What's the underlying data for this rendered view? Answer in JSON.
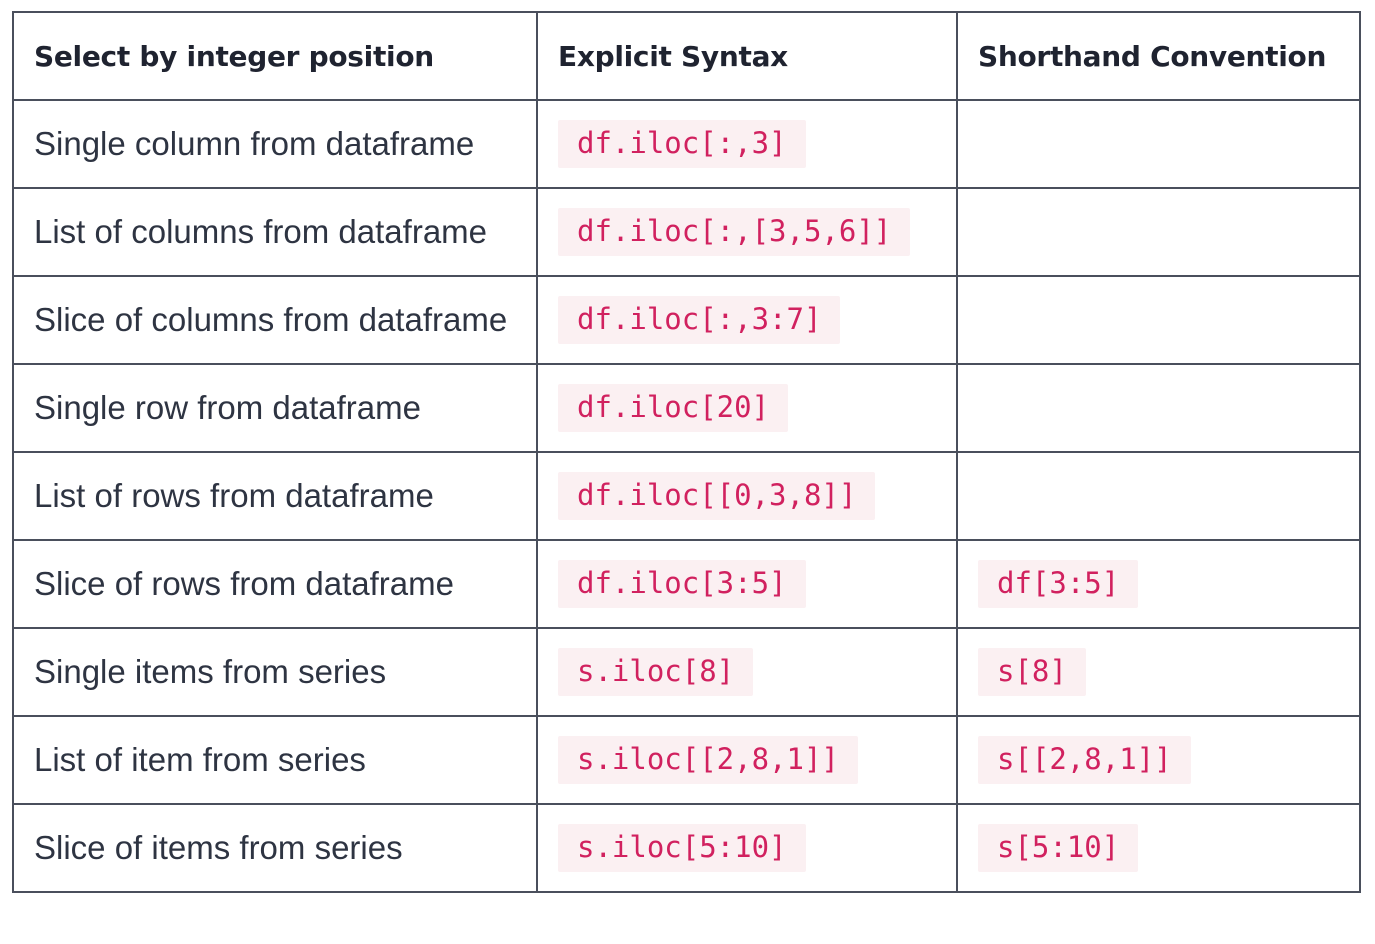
{
  "table": {
    "headers": [
      "Select by integer position",
      "Explicit Syntax",
      "Shorthand Convention"
    ],
    "rows": [
      {
        "label": "Single column from dataframe",
        "explicit": "df.iloc[:,3]",
        "shorthand": ""
      },
      {
        "label": "List of columns from dataframe",
        "explicit": "df.iloc[:,[3,5,6]]",
        "shorthand": ""
      },
      {
        "label": "Slice of columns from dataframe",
        "explicit": "df.iloc[:,3:7]",
        "shorthand": ""
      },
      {
        "label": "Single row from dataframe",
        "explicit": "df.iloc[20]",
        "shorthand": ""
      },
      {
        "label": "List of rows from dataframe",
        "explicit": "df.iloc[[0,3,8]]",
        "shorthand": ""
      },
      {
        "label": "Slice of rows from dataframe",
        "explicit": "df.iloc[3:5]",
        "shorthand": "df[3:5]"
      },
      {
        "label": "Single items from series",
        "explicit": "s.iloc[8]",
        "shorthand": "s[8]"
      },
      {
        "label": "List of item from series",
        "explicit": "s.iloc[[2,8,1]]",
        "shorthand": "s[[2,8,1]]"
      },
      {
        "label": "Slice of items from series",
        "explicit": "s.iloc[5:10]",
        "shorthand": "s[5:10]"
      }
    ]
  },
  "colors": {
    "code_text": "#d1215f",
    "code_background": "#fbf0f2",
    "border": "#4a4f5c",
    "text": "#2e3442"
  }
}
